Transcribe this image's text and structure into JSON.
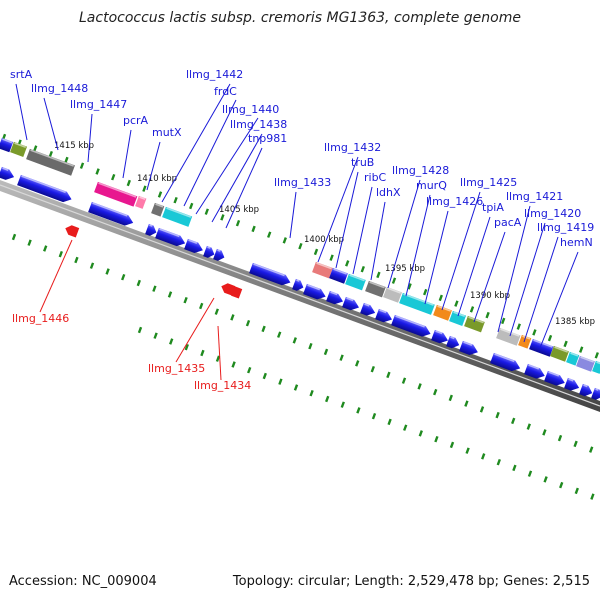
{
  "title": "Lactococcus lactis subsp. cremoris MG1363, complete genome",
  "footer": {
    "accession": "Accession: NC_009004",
    "summary": "Topology: circular; Length: 2,529,478 bp; Genes: 2,515"
  },
  "colors": {
    "cds": "#1a1ae6",
    "rna": "#e81c1c",
    "backbone": "#8a8a8a",
    "tick": "#1f8a1f"
  },
  "kbp_labels": [
    "1415 kbp",
    "1410 kbp",
    "1405 kbp",
    "1400 kbp",
    "1395 kbp",
    "1390 kbp",
    "1385 kbp"
  ],
  "gene_labels_blue": [
    "srtA",
    "llmg_1448",
    "llmg_1447",
    "pcrA",
    "mutX",
    "llmg_1442",
    "frdC",
    "llmg_1440",
    "llmg_1438",
    "tnp981",
    "llmg_1433",
    "llmg_1432",
    "truB",
    "ribC",
    "ldhX",
    "llmg_1428",
    "murQ",
    "llmg_1426",
    "llmg_1425",
    "tpiA",
    "pacA",
    "llmg_1421",
    "llmg_1420",
    "llmg_1419",
    "hemN"
  ],
  "gene_labels_red": [
    "llmg_1446",
    "llmg_1435",
    "llmg_1434"
  ]
}
